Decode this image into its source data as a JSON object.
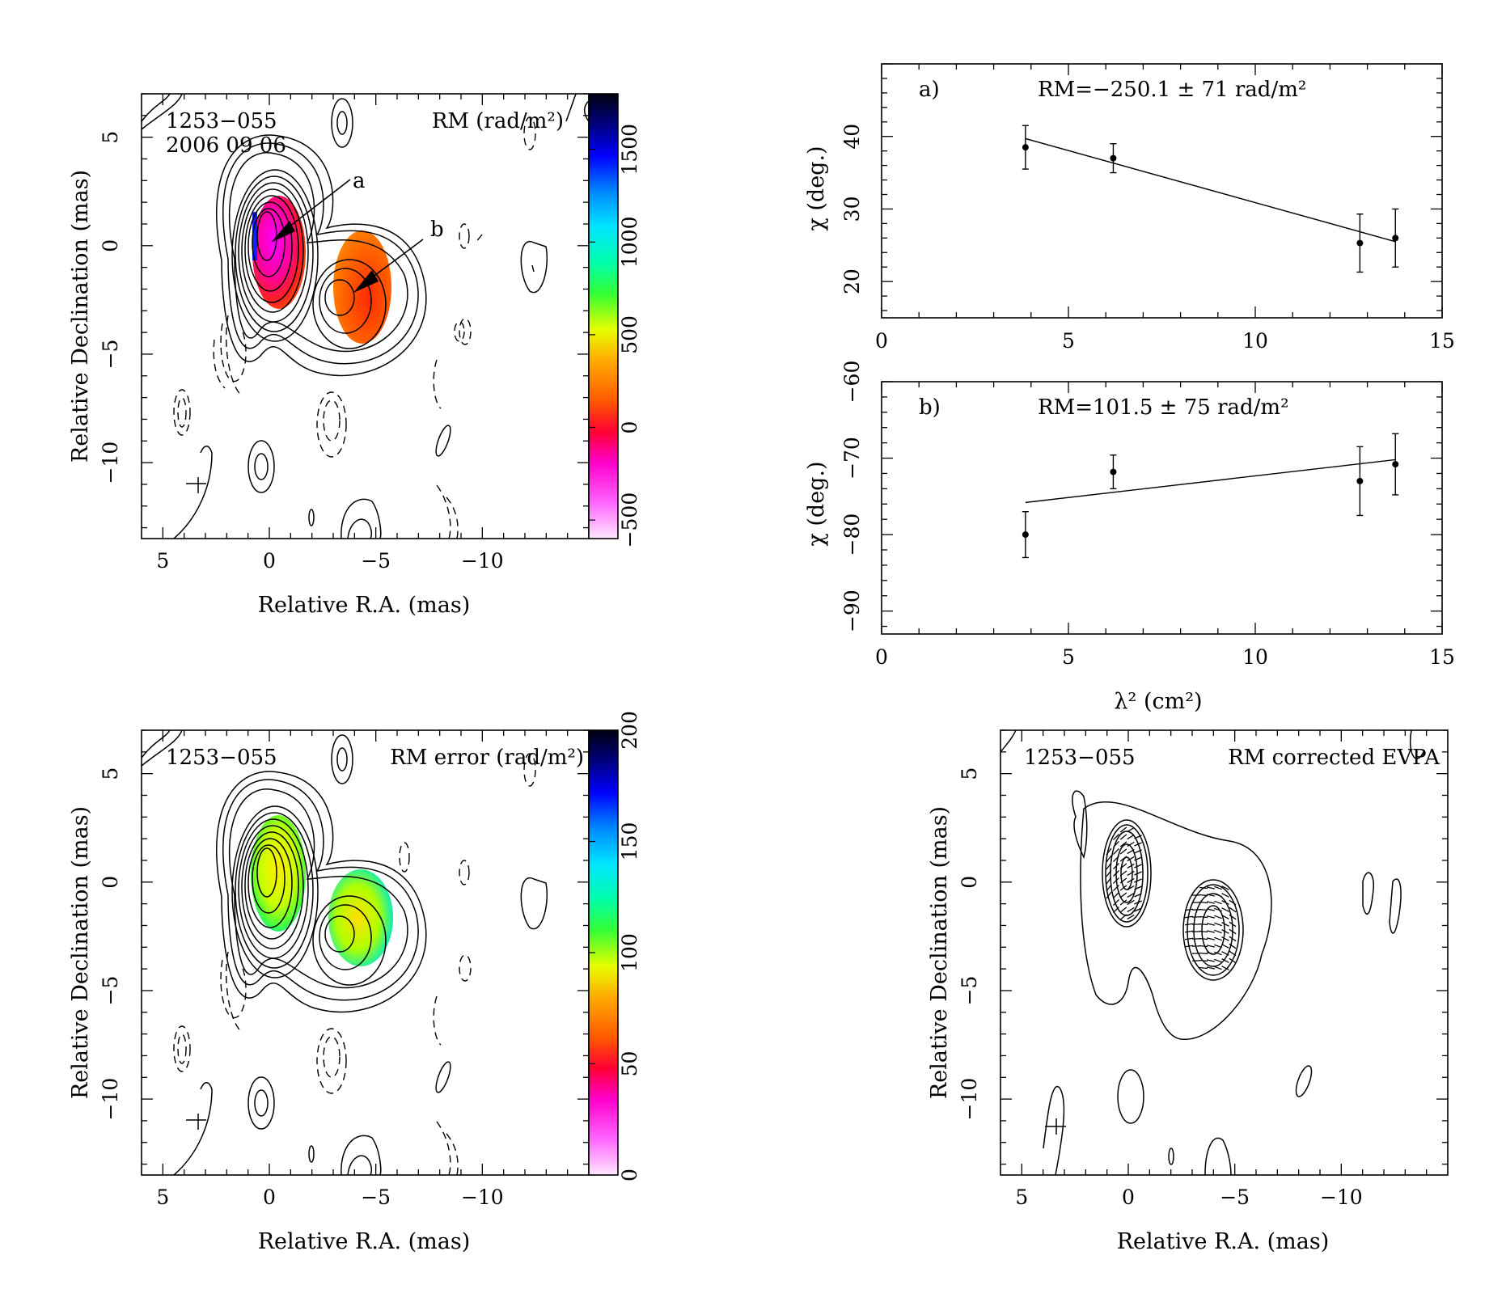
{
  "colors": {
    "contour": "#000000",
    "frame": "#000000",
    "background": "#ffffff"
  },
  "rm_map": {
    "source_label": "1253−055",
    "date_label": "2006 09 06",
    "quantity_label": "RM (rad/m²)",
    "xlabel": "Relative R.A. (mas)",
    "ylabel": "Relative Declination (mas)",
    "x_ticks": [
      "5",
      "0",
      "−5",
      "−10"
    ],
    "y_ticks": [
      "5",
      "0",
      "−5",
      "−10"
    ],
    "colorbar_ticks": [
      "1500",
      "1000",
      "500",
      "0",
      "−500"
    ],
    "arrow_a": "a",
    "arrow_b": "b"
  },
  "rm_error_map": {
    "source_label": "1253−055",
    "quantity_label": "RM error (rad/m²)",
    "xlabel": "Relative R.A. (mas)",
    "ylabel": "Relative Declination (mas)",
    "x_ticks": [
      "5",
      "0",
      "−5",
      "−10"
    ],
    "y_ticks": [
      "5",
      "0",
      "−5",
      "−10"
    ],
    "colorbar_ticks": [
      "200",
      "150",
      "100",
      "50",
      "0"
    ]
  },
  "evpa_map": {
    "source_label": "1253−055",
    "quantity_label": "RM corrected EVPA",
    "xlabel": "Relative R.A. (mas)",
    "ylabel": "Relative Declination (mas)",
    "x_ticks": [
      "5",
      "0",
      "−5",
      "−10"
    ],
    "y_ticks": [
      "5",
      "0",
      "−5",
      "−10"
    ]
  },
  "fit_panels": {
    "xlabel": "λ² (cm²)",
    "ylabel": "χ (deg.)"
  },
  "chart_data": [
    {
      "type": "scatter",
      "panel": "a)",
      "annotation": "RM=−250.1 ± 71 rad/m²",
      "x": [
        3.85,
        6.2,
        12.8,
        13.75
      ],
      "y": [
        38.5,
        37.0,
        25.3,
        26.0
      ],
      "yerr": [
        3.0,
        2.0,
        4.0,
        4.0
      ],
      "fit_line": {
        "x": [
          3.85,
          13.75
        ],
        "y": [
          39.7,
          25.5
        ]
      },
      "xlim": [
        0,
        15
      ],
      "ylim": [
        15,
        50
      ],
      "x_ticks": [
        0,
        5,
        10,
        15
      ],
      "y_ticks": [
        20,
        30,
        40
      ],
      "x_tick_labels": [
        "0",
        "5",
        "10",
        "15"
      ],
      "y_tick_labels": [
        "20",
        "30",
        "40"
      ]
    },
    {
      "type": "scatter",
      "panel": "b)",
      "annotation": "RM=101.5 ± 75 rad/m²",
      "x": [
        3.85,
        6.2,
        12.8,
        13.75
      ],
      "y": [
        -80.0,
        -71.8,
        -73.0,
        -70.8
      ],
      "yerr": [
        3.0,
        2.2,
        4.5,
        4.0
      ],
      "fit_line": {
        "x": [
          3.85,
          13.75
        ],
        "y": [
          -75.8,
          -70.2
        ]
      },
      "xlim": [
        0,
        15
      ],
      "ylim": [
        -93,
        -60
      ],
      "x_ticks": [
        0,
        5,
        10,
        15
      ],
      "y_ticks": [
        -90,
        -80,
        -70,
        -60
      ],
      "x_tick_labels": [
        "0",
        "5",
        "10",
        "15"
      ],
      "y_tick_labels": [
        "−90",
        "−80",
        "−70",
        "−60"
      ]
    }
  ]
}
